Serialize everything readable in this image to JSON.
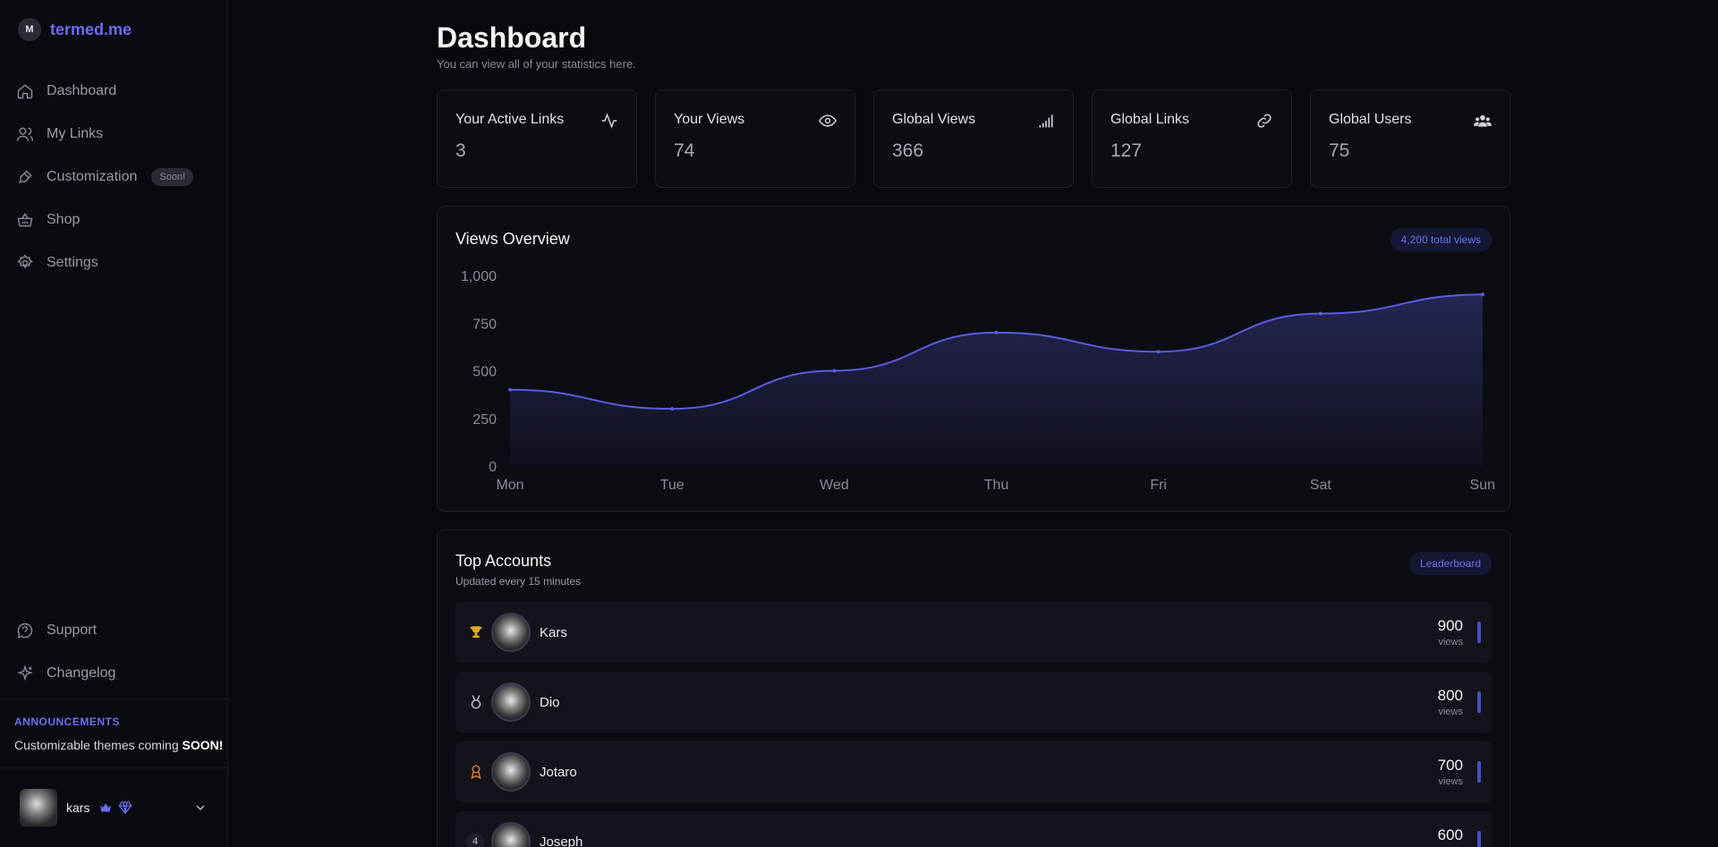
{
  "brand": {
    "name": "termed.me",
    "logo_text": "M"
  },
  "sidebar": {
    "items": [
      {
        "label": "Dashboard",
        "icon": "home-icon"
      },
      {
        "label": "My Links",
        "icon": "users-icon"
      },
      {
        "label": "Customization",
        "icon": "brush-icon",
        "badge": "Soon!"
      },
      {
        "label": "Shop",
        "icon": "basket-icon"
      },
      {
        "label": "Settings",
        "icon": "gear-icon"
      }
    ],
    "bottom_items": [
      {
        "label": "Support",
        "icon": "chat-icon"
      },
      {
        "label": "Changelog",
        "icon": "sparkle-icon"
      }
    ],
    "announcements": {
      "title": "ANNOUNCEMENTS",
      "text_pre": "Customizable themes coming ",
      "text_bold": "SOON!"
    },
    "user": {
      "name": "kars",
      "icons": [
        "crown-icon",
        "gem-icon"
      ]
    }
  },
  "header": {
    "title": "Dashboard",
    "subtitle": "You can view all of your statistics here."
  },
  "stats": [
    {
      "label": "Your Active Links",
      "value": "3",
      "icon": "activity-icon"
    },
    {
      "label": "Your Views",
      "value": "74",
      "icon": "eye-icon"
    },
    {
      "label": "Global Views",
      "value": "366",
      "icon": "signal-icon"
    },
    {
      "label": "Global Links",
      "value": "127",
      "icon": "link-icon"
    },
    {
      "label": "Global Users",
      "value": "75",
      "icon": "users-group-icon"
    }
  ],
  "views_card": {
    "title": "Views Overview",
    "pill": "4,200 total views"
  },
  "chart_data": {
    "type": "area",
    "categories": [
      "Mon",
      "Tue",
      "Wed",
      "Thu",
      "Fri",
      "Sat",
      "Sun"
    ],
    "values": [
      400,
      300,
      500,
      700,
      600,
      800,
      900
    ],
    "y_ticks": [
      "0",
      "250",
      "500",
      "750",
      "1,000"
    ],
    "ylim": [
      0,
      1000
    ],
    "grid": false,
    "color": "#5b5be0"
  },
  "accounts_card": {
    "title": "Top Accounts",
    "subtitle": "Updated every 15 minutes",
    "pill": "Leaderboard",
    "views_label": "views",
    "rows": [
      {
        "rank": "trophy-icon",
        "rank_color": "#e5a91c",
        "name": "Kars",
        "views": "900"
      },
      {
        "rank": "medal-icon",
        "rank_color": "#b8b8c0",
        "name": "Dio",
        "views": "800"
      },
      {
        "rank": "award-icon",
        "rank_color": "#d9782d",
        "name": "Jotaro",
        "views": "700"
      },
      {
        "rank_num": "4",
        "name": "Joseph",
        "views": "600"
      }
    ]
  }
}
